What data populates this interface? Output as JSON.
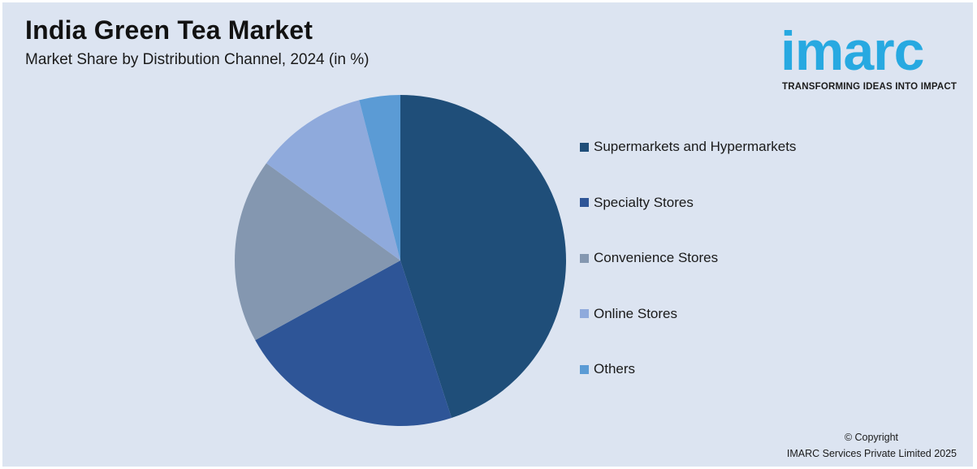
{
  "header": {
    "title": "India Green Tea Market",
    "subtitle": "Market Share by Distribution Channel, 2024 (in %)"
  },
  "logo": {
    "word": "imarc",
    "tagline": "TRANSFORMING IDEAS INTO IMPACT",
    "color": "#27a9e1"
  },
  "chart_data": {
    "type": "pie",
    "title": "India Green Tea Market",
    "subtitle": "Market Share by Distribution Channel, 2024 (in %)",
    "legend_position": "right",
    "series": [
      {
        "label": "Supermarkets and Hypermarkets",
        "value": 45,
        "color": "#1f4e79"
      },
      {
        "label": "Specialty Stores",
        "value": 22,
        "color": "#2e5597"
      },
      {
        "label": "Convenience Stores",
        "value": 18,
        "color": "#8497b0"
      },
      {
        "label": "Online Stores",
        "value": 11,
        "color": "#8faadc"
      },
      {
        "label": "Others",
        "value": 4,
        "color": "#5b9bd5"
      }
    ]
  },
  "footer": {
    "copyright_line1": "© Copyright",
    "copyright_line2": "IMARC Services Private Limited 2025"
  }
}
